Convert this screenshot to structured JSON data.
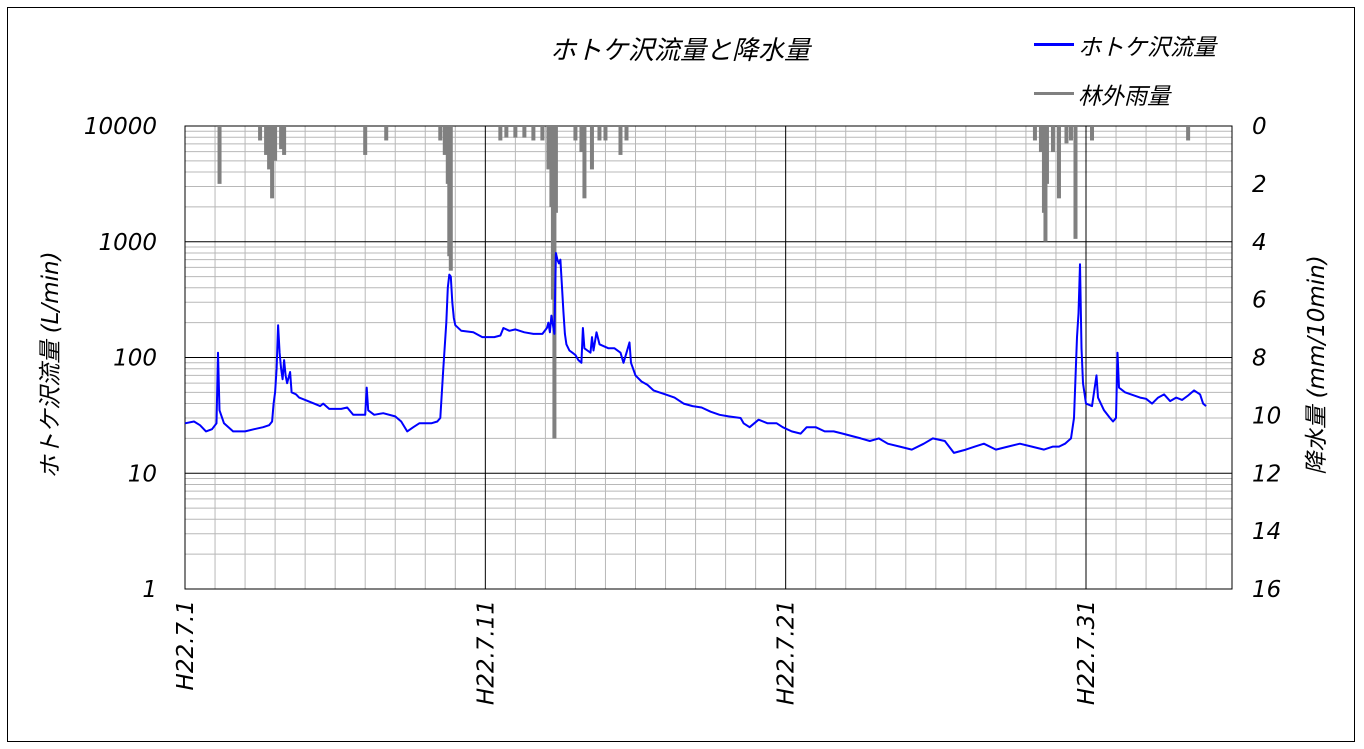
{
  "chart_data": {
    "type": "line",
    "title": "ホトケ沢流量と降水量",
    "ylabel": "ホトケ沢流量 (L/min)",
    "y2label": "降水量 (mm/10min)",
    "xlim": [
      "H22.7.1",
      "H22.8.4"
    ],
    "ylim": [
      1,
      10000
    ],
    "yscale": "log",
    "y2lim": [
      16,
      0
    ],
    "y2_inverted": true,
    "grid": true,
    "legend_position": "top-right",
    "y_ticks": [
      "10000",
      "1000",
      "100",
      "10",
      "1"
    ],
    "y2_ticks": [
      "0",
      "2",
      "4",
      "6",
      "8",
      "10",
      "12",
      "14",
      "16"
    ],
    "x_ticks": [
      "H22.7.1",
      "H22.7.11",
      "H22.7.21",
      "H22.7.31"
    ],
    "series": [
      {
        "name": "ホトケ沢流量",
        "axis": "left",
        "color": "#0000ff",
        "points": [
          [
            0.0,
            27
          ],
          [
            0.3,
            28
          ],
          [
            0.5,
            26
          ],
          [
            0.7,
            23
          ],
          [
            0.9,
            24
          ],
          [
            1.05,
            27
          ],
          [
            1.1,
            110
          ],
          [
            1.15,
            35
          ],
          [
            1.3,
            27
          ],
          [
            1.6,
            23
          ],
          [
            2.0,
            23
          ],
          [
            2.3,
            24
          ],
          [
            2.6,
            25
          ],
          [
            2.8,
            26
          ],
          [
            2.9,
            28
          ],
          [
            2.95,
            40
          ],
          [
            3.0,
            50
          ],
          [
            3.05,
            80
          ],
          [
            3.1,
            190
          ],
          [
            3.15,
            110
          ],
          [
            3.2,
            80
          ],
          [
            3.25,
            65
          ],
          [
            3.3,
            95
          ],
          [
            3.35,
            70
          ],
          [
            3.4,
            60
          ],
          [
            3.5,
            75
          ],
          [
            3.55,
            50
          ],
          [
            3.7,
            48
          ],
          [
            3.8,
            45
          ],
          [
            4.0,
            43
          ],
          [
            4.3,
            40
          ],
          [
            4.5,
            38
          ],
          [
            4.6,
            40
          ],
          [
            4.8,
            36
          ],
          [
            5.2,
            36
          ],
          [
            5.4,
            37
          ],
          [
            5.6,
            32
          ],
          [
            6.0,
            32
          ],
          [
            6.05,
            55
          ],
          [
            6.1,
            35
          ],
          [
            6.3,
            32
          ],
          [
            6.6,
            33
          ],
          [
            7.0,
            31
          ],
          [
            7.2,
            28
          ],
          [
            7.4,
            23
          ],
          [
            7.6,
            25
          ],
          [
            7.8,
            27
          ],
          [
            8.2,
            27
          ],
          [
            8.4,
            28
          ],
          [
            8.5,
            30
          ],
          [
            8.6,
            80
          ],
          [
            8.7,
            200
          ],
          [
            8.75,
            400
          ],
          [
            8.8,
            520
          ],
          [
            8.85,
            500
          ],
          [
            8.9,
            300
          ],
          [
            8.95,
            220
          ],
          [
            9.0,
            190
          ],
          [
            9.2,
            170
          ],
          [
            9.6,
            165
          ],
          [
            9.9,
            150
          ],
          [
            10.3,
            150
          ],
          [
            10.5,
            155
          ],
          [
            10.6,
            180
          ],
          [
            10.8,
            170
          ],
          [
            11.0,
            175
          ],
          [
            11.3,
            165
          ],
          [
            11.6,
            160
          ],
          [
            11.9,
            160
          ],
          [
            12.05,
            180
          ],
          [
            12.1,
            200
          ],
          [
            12.15,
            165
          ],
          [
            12.2,
            230
          ],
          [
            12.3,
            160
          ],
          [
            12.35,
            800
          ],
          [
            12.4,
            700
          ],
          [
            12.45,
            650
          ],
          [
            12.5,
            700
          ],
          [
            12.55,
            420
          ],
          [
            12.6,
            250
          ],
          [
            12.65,
            160
          ],
          [
            12.7,
            130
          ],
          [
            12.8,
            115
          ],
          [
            12.9,
            110
          ],
          [
            13.0,
            105
          ],
          [
            13.1,
            95
          ],
          [
            13.2,
            90
          ],
          [
            13.25,
            180
          ],
          [
            13.3,
            120
          ],
          [
            13.4,
            115
          ],
          [
            13.5,
            110
          ],
          [
            13.55,
            150
          ],
          [
            13.6,
            115
          ],
          [
            13.7,
            165
          ],
          [
            13.8,
            130
          ],
          [
            14.1,
            120
          ],
          [
            14.3,
            120
          ],
          [
            14.5,
            110
          ],
          [
            14.6,
            90
          ],
          [
            14.7,
            110
          ],
          [
            14.8,
            135
          ],
          [
            14.85,
            90
          ],
          [
            15.0,
            70
          ],
          [
            15.2,
            62
          ],
          [
            15.4,
            58
          ],
          [
            15.6,
            52
          ],
          [
            16.0,
            48
          ],
          [
            16.3,
            45
          ],
          [
            16.6,
            40
          ],
          [
            16.9,
            38
          ],
          [
            17.2,
            37
          ],
          [
            17.5,
            34
          ],
          [
            17.8,
            32
          ],
          [
            18.1,
            31
          ],
          [
            18.5,
            30
          ],
          [
            18.6,
            27
          ],
          [
            18.8,
            25
          ],
          [
            19.1,
            29
          ],
          [
            19.4,
            27
          ],
          [
            19.7,
            27
          ],
          [
            19.9,
            25
          ],
          [
            20.2,
            23
          ],
          [
            20.5,
            22
          ],
          [
            20.7,
            25
          ],
          [
            21.0,
            25
          ],
          [
            21.3,
            23
          ],
          [
            21.6,
            23
          ],
          [
            21.9,
            22
          ],
          [
            22.2,
            21
          ],
          [
            22.5,
            20
          ],
          [
            22.8,
            19
          ],
          [
            23.1,
            20
          ],
          [
            23.4,
            18
          ],
          [
            23.8,
            17
          ],
          [
            24.2,
            16
          ],
          [
            24.6,
            18
          ],
          [
            24.9,
            20
          ],
          [
            25.3,
            19
          ],
          [
            25.6,
            15
          ],
          [
            26.0,
            16
          ],
          [
            26.3,
            17
          ],
          [
            26.6,
            18
          ],
          [
            27.0,
            16
          ],
          [
            27.4,
            17
          ],
          [
            27.8,
            18
          ],
          [
            28.2,
            17
          ],
          [
            28.6,
            16
          ],
          [
            28.9,
            17
          ],
          [
            29.1,
            17
          ],
          [
            29.3,
            18
          ],
          [
            29.5,
            20
          ],
          [
            29.6,
            30
          ],
          [
            29.7,
            150
          ],
          [
            29.75,
            240
          ],
          [
            29.8,
            640
          ],
          [
            29.85,
            120
          ],
          [
            29.9,
            60
          ],
          [
            30.0,
            40
          ],
          [
            30.2,
            38
          ],
          [
            30.35,
            70
          ],
          [
            30.4,
            45
          ],
          [
            30.6,
            35
          ],
          [
            30.8,
            30
          ],
          [
            30.9,
            28
          ],
          [
            31.0,
            30
          ],
          [
            31.05,
            110
          ],
          [
            31.1,
            55
          ],
          [
            31.3,
            50
          ],
          [
            31.5,
            48
          ],
          [
            31.8,
            45
          ],
          [
            32.0,
            44
          ],
          [
            32.2,
            40
          ],
          [
            32.4,
            45
          ],
          [
            32.6,
            48
          ],
          [
            32.8,
            42
          ],
          [
            33.0,
            45
          ],
          [
            33.2,
            43
          ],
          [
            33.4,
            47
          ],
          [
            33.6,
            52
          ],
          [
            33.8,
            48
          ],
          [
            33.9,
            40
          ],
          [
            34.0,
            38
          ]
        ]
      },
      {
        "name": "林外雨量",
        "axis": "right",
        "color": "#808080",
        "points": [
          [
            1.15,
            2.0
          ],
          [
            2.5,
            0.5
          ],
          [
            2.7,
            1.0
          ],
          [
            2.8,
            1.5
          ],
          [
            2.9,
            2.5
          ],
          [
            3.0,
            1.2
          ],
          [
            3.2,
            0.8
          ],
          [
            3.3,
            1.0
          ],
          [
            6.0,
            1.0
          ],
          [
            6.7,
            0.5
          ],
          [
            8.5,
            0.5
          ],
          [
            8.65,
            1.0
          ],
          [
            8.75,
            2.0
          ],
          [
            8.8,
            4.5
          ],
          [
            8.85,
            5.0
          ],
          [
            10.5,
            0.5
          ],
          [
            10.7,
            0.4
          ],
          [
            11.0,
            0.4
          ],
          [
            11.3,
            0.4
          ],
          [
            11.6,
            0.5
          ],
          [
            11.9,
            0.5
          ],
          [
            12.1,
            1.5
          ],
          [
            12.2,
            2.8
          ],
          [
            12.25,
            6.0
          ],
          [
            12.3,
            10.8
          ],
          [
            12.35,
            3.0
          ],
          [
            13.0,
            0.5
          ],
          [
            13.2,
            0.9
          ],
          [
            13.3,
            2.5
          ],
          [
            13.55,
            1.5
          ],
          [
            13.8,
            0.5
          ],
          [
            14.0,
            0.5
          ],
          [
            14.5,
            1.0
          ],
          [
            14.7,
            0.5
          ],
          [
            28.3,
            0.5
          ],
          [
            28.5,
            0.9
          ],
          [
            28.6,
            3.0
          ],
          [
            28.65,
            4.0
          ],
          [
            28.7,
            2.0
          ],
          [
            28.9,
            0.9
          ],
          [
            29.1,
            2.5
          ],
          [
            29.35,
            0.6
          ],
          [
            29.5,
            0.5
          ],
          [
            29.65,
            3.9
          ],
          [
            30.2,
            0.5
          ],
          [
            33.4,
            0.5
          ]
        ]
      }
    ]
  }
}
